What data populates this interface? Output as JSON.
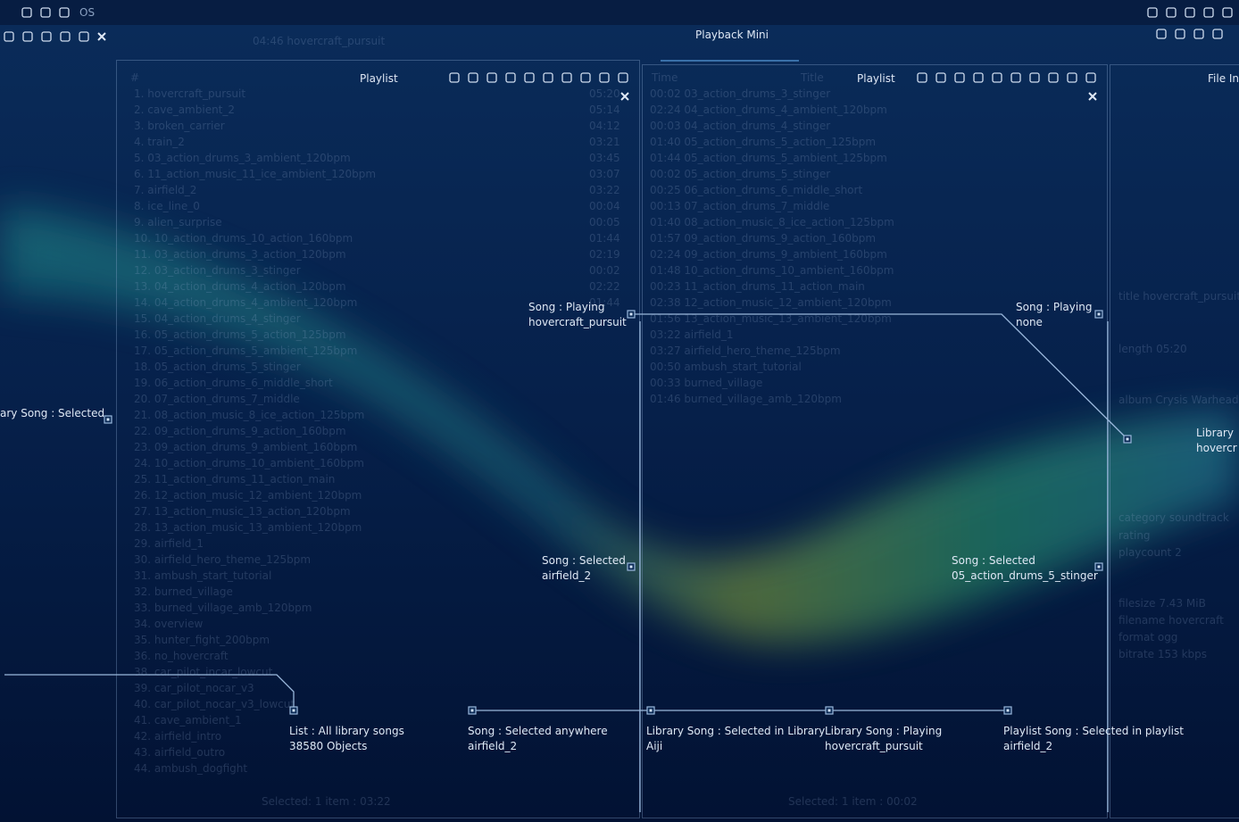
{
  "topbar": {
    "os": "OS",
    "title": "Playback Mini",
    "now_playing": "04:46 hovercraft_pursuit"
  },
  "left_panel": {
    "title": "Playlist",
    "header": "#",
    "items": [
      "1. hovercraft_pursuit",
      "2. cave_ambient_2",
      "3. broken_carrier",
      "4. train_2",
      "5. 03_action_drums_3_ambient_120bpm",
      "6. 11_action_music_11_ice_ambient_120bpm",
      "7. airfield_2",
      "8. ice_line_0",
      "9. alien_surprise",
      "10. 10_action_drums_10_action_160bpm",
      "11. 03_action_drums_3_action_120bpm",
      "12. 03_action_drums_3_stinger",
      "13. 04_action_drums_4_action_120bpm",
      "14. 04_action_drums_4_ambient_120bpm",
      "15. 04_action_drums_4_stinger",
      "16. 05_action_drums_5_action_125bpm",
      "17. 05_action_drums_5_ambient_125bpm",
      "18. 05_action_drums_5_stinger",
      "19. 06_action_drums_6_middle_short",
      "20. 07_action_drums_7_middle",
      "21. 08_action_music_8_ice_action_125bpm",
      "22. 09_action_drums_9_action_160bpm",
      "23. 09_action_drums_9_ambient_160bpm",
      "24. 10_action_drums_10_ambient_160bpm",
      "25. 11_action_drums_11_action_main",
      "26. 12_action_music_12_ambient_120bpm",
      "27. 13_action_music_13_action_120bpm",
      "28. 13_action_music_13_ambient_120bpm",
      "29. airfield_1",
      "30. airfield_hero_theme_125bpm",
      "31. ambush_start_tutorial",
      "32. burned_village",
      "33. burned_village_amb_120bpm",
      "34. overview",
      "35. hunter_fight_200bpm",
      "36. no_hovercraft",
      "38. car_pilot_incar_lowcut",
      "39. car_pilot_nocar_v3",
      "40. car_pilot_nocar_v3_lowcut",
      "41. cave_ambient_1",
      "42. airfield_intro",
      "43. airfield_outro",
      "44. ambush_dogfight"
    ],
    "durations": [
      "05:20",
      "05:14",
      "04:12",
      "03:21",
      "03:45",
      "03:07",
      "03:22",
      "00:04",
      "00:05",
      "01:44",
      "02:19",
      "00:02",
      "02:22",
      "01:44"
    ],
    "status": "Selected: 1 item : 03:22"
  },
  "right_panel": {
    "title": "Playlist",
    "columns": [
      "Time",
      "Title"
    ],
    "items": [
      "00:02 03_action_drums_3_stinger",
      "02:24 04_action_drums_4_ambient_120bpm",
      "00:03 04_action_drums_4_stinger",
      "01:40 05_action_drums_5_action_125bpm",
      "01:44 05_action_drums_5_ambient_125bpm",
      "00:02 05_action_drums_5_stinger",
      "00:25 06_action_drums_6_middle_short",
      "00:13 07_action_drums_7_middle",
      "01:40 08_action_music_8_ice_action_125bpm",
      "01:57 09_action_drums_9_action_160bpm",
      "02:24 09_action_drums_9_ambient_160bpm",
      "01:48 10_action_drums_10_ambient_160bpm",
      "00:23 11_action_drums_11_action_main",
      "02:38 12_action_music_12_ambient_120bpm",
      "01:56 13_action_music_13_ambient_120bpm",
      "03:22 airfield_1",
      "03:27 airfield_hero_theme_125bpm",
      "00:50 ambush_start_tutorial",
      "00:33 burned_village",
      "01:46 burned_village_amb_120bpm"
    ],
    "status": "Selected: 1 item : 00:02"
  },
  "info_panel": {
    "title": "File In",
    "fields": [
      "title hovercraft_pursuit",
      "length 05:20",
      "album Crysis Warhead",
      "category soundtrack",
      "rating",
      "playcount 2",
      "filesize 7.43 MiB",
      "filename hovercraft",
      "format ogg",
      "bitrate 153 kbps"
    ]
  },
  "annotations": [
    {
      "label": "Song : Playing",
      "value": "hovercraft_pursuit"
    },
    {
      "label": "Song : Playing",
      "value": "none"
    },
    {
      "label": "ary Song : Selected"
    },
    {
      "label": "Library",
      "value": "hovercr"
    },
    {
      "label": "Song : Selected",
      "value": "airfield_2"
    },
    {
      "label": "Song : Selected",
      "value": "05_action_drums_5_stinger"
    },
    {
      "label": "List : All library songs",
      "value": "38580 Objects"
    },
    {
      "label": "Song : Selected anywhere",
      "value": "airfield_2"
    },
    {
      "label": "Library Song : Selected in Library",
      "value": "Aiji"
    },
    {
      "label": "Library Song : Playing",
      "value": "hovercraft_pursuit"
    },
    {
      "label": "Playlist Song : Selected in playlist",
      "value": "airfield_2"
    }
  ]
}
